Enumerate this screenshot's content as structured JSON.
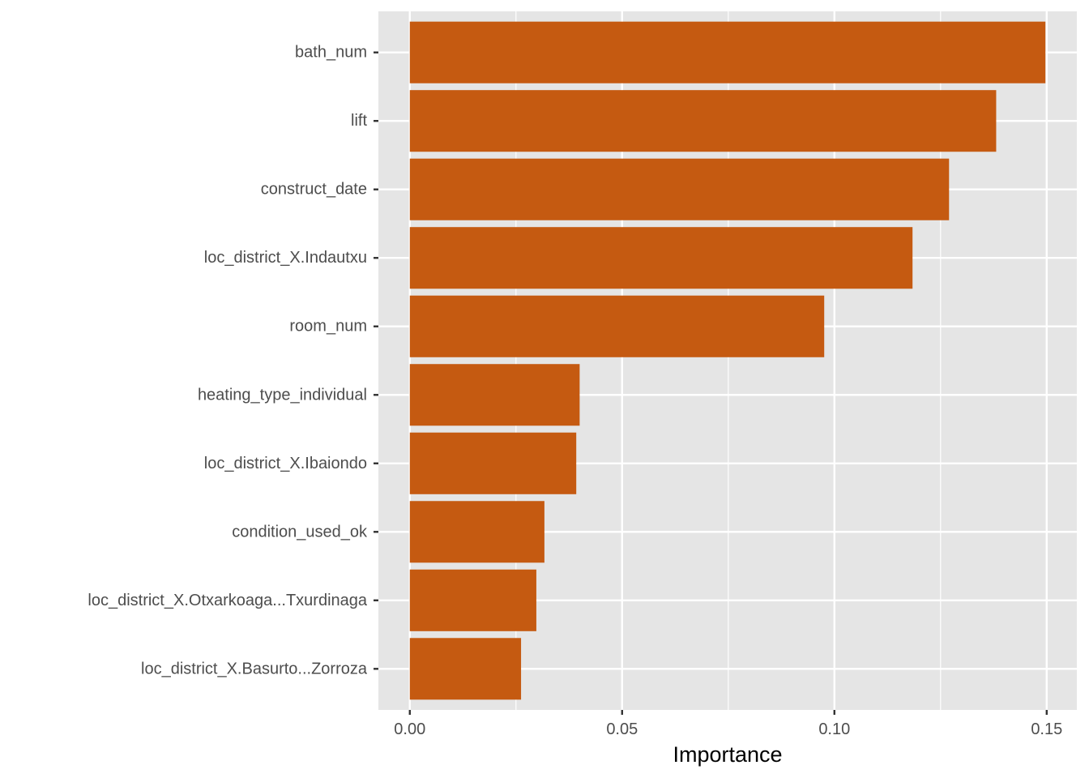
{
  "chart_data": {
    "type": "bar",
    "orientation": "horizontal",
    "categories": [
      "bath_num",
      "lift",
      "construct_date",
      "loc_district_X.Indautxu",
      "room_num",
      "heating_type_individual",
      "loc_district_X.Ibaiondo",
      "condition_used_ok",
      "loc_district_X.Otxarkoaga...Txurdinaga",
      "loc_district_X.Basurto...Zorroza"
    ],
    "values": [
      0.1497,
      0.1381,
      0.127,
      0.1184,
      0.0976,
      0.04,
      0.0392,
      0.0317,
      0.0298,
      0.0262
    ],
    "title": "",
    "xlabel": "Importance",
    "ylabel": "",
    "xlim": [
      -0.0074,
      0.1571
    ],
    "x_ticks": [
      0.0,
      0.05,
      0.1,
      0.15
    ],
    "x_tick_labels": [
      "0.00",
      "0.05",
      "0.10",
      "0.15"
    ],
    "grid": true,
    "legend": "none",
    "bar_color": "#c55a11",
    "panel_background": "#e5e5e5",
    "grid_color": "#ffffff"
  }
}
